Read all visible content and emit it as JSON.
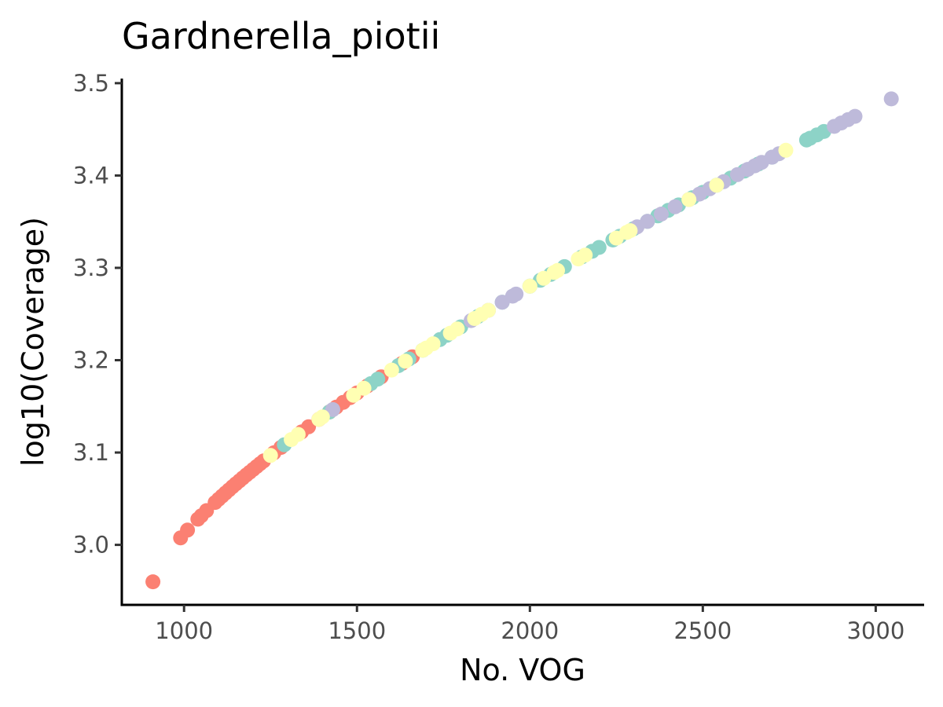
{
  "chart_data": {
    "type": "scatter",
    "title": "Gardnerella_piotii",
    "xlabel": "No. VOG",
    "ylabel": "log10(Coverage)",
    "xlim": [
      820,
      3140
    ],
    "ylim": [
      2.935,
      3.505
    ],
    "x_ticks": [
      1000,
      1500,
      2000,
      2500,
      3000
    ],
    "x_tick_labels": [
      "1000",
      "1500",
      "2000",
      "2500",
      "3000"
    ],
    "y_ticks": [
      3.0,
      3.1,
      3.2,
      3.3,
      3.4,
      3.5
    ],
    "y_tick_labels": [
      "3.0",
      "3.1",
      "3.2",
      "3.3",
      "3.4",
      "3.5"
    ],
    "grid": false,
    "legend": "none",
    "curve": {
      "x0": 910,
      "y0": 2.96,
      "x1": 3045,
      "y1": 3.483,
      "exponent": 0.73
    },
    "series": [
      {
        "color": "#fb8072",
        "x": [
          910,
          990,
          1010,
          1040,
          1050,
          1065,
          1090,
          1100,
          1110,
          1120,
          1130,
          1140,
          1150,
          1160,
          1170,
          1180,
          1190,
          1200,
          1210,
          1220,
          1230,
          1260,
          1280,
          1340,
          1360,
          1390,
          1420,
          1440,
          1460,
          1480,
          1500,
          1530,
          1570,
          1630,
          1660
        ]
      },
      {
        "color": "#8dd3c7",
        "x": [
          1290,
          1420,
          1540,
          1560,
          1620,
          1650,
          1690,
          1740,
          1760,
          1800,
          1850,
          1920,
          2000,
          2030,
          2060,
          2100,
          2150,
          2180,
          2200,
          2240,
          2260,
          2300,
          2340,
          2370,
          2400,
          2430,
          2470,
          2500,
          2540,
          2580,
          2620,
          2660,
          2700,
          2800,
          2810,
          2830,
          2850
        ]
      },
      {
        "color": "#bebada",
        "x": [
          1430,
          1830,
          1880,
          1920,
          1950,
          1960,
          2310,
          2340,
          2380,
          2420,
          2460,
          2490,
          2520,
          2560,
          2600,
          2630,
          2650,
          2670,
          2700,
          2720,
          2880,
          2900,
          2920,
          2940,
          3045
        ]
      },
      {
        "color": "#ffffb3",
        "x": [
          1250,
          1310,
          1330,
          1390,
          1400,
          1490,
          1520,
          1600,
          1640,
          1690,
          1700,
          1720,
          1770,
          1790,
          1840,
          1860,
          1880,
          2000,
          2040,
          2070,
          2080,
          2140,
          2160,
          2250,
          2280,
          2290,
          2460,
          2540,
          2740
        ]
      }
    ]
  }
}
